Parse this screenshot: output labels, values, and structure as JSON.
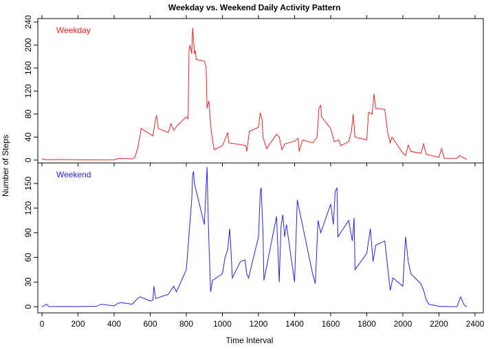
{
  "chart_data": {
    "type": "line",
    "title": "Weekday vs. Weekend Daily Activity Pattern",
    "xlabel": "Time Interval",
    "ylabel": "Number of Steps",
    "xlim": [
      -23,
      2446
    ],
    "xticks": [
      0,
      200,
      400,
      600,
      800,
      1000,
      1200,
      1400,
      1600,
      1800,
      2000,
      2200,
      2400
    ],
    "series": [
      {
        "name": "Weekday",
        "color": "#ee2222",
        "ylim": [
          -5,
          246
        ],
        "yticks": [
          0,
          40,
          80,
          120,
          160,
          200,
          240
        ],
        "x": [
          0,
          25,
          100,
          200,
          300,
          400,
          430,
          500,
          515,
          530,
          545,
          550,
          600,
          615,
          630,
          635,
          645,
          700,
          715,
          730,
          750,
          800,
          810,
          815,
          820,
          830,
          835,
          840,
          845,
          850,
          855,
          900,
          905,
          910,
          915,
          925,
          935,
          945,
          955,
          1000,
          1030,
          1035,
          1100,
          1130,
          1135,
          1150,
          1200,
          1210,
          1220,
          1225,
          1245,
          1300,
          1315,
          1330,
          1345,
          1400,
          1420,
          1425,
          1445,
          1500,
          1525,
          1535,
          1545,
          1550,
          1600,
          1620,
          1645,
          1655,
          1700,
          1715,
          1725,
          1735,
          1800,
          1810,
          1830,
          1840,
          1850,
          1900,
          1915,
          1930,
          1940,
          2000,
          2015,
          2030,
          2045,
          2100,
          2115,
          2130,
          2200,
          2215,
          2230,
          2300,
          2315,
          2330,
          2355
        ],
        "values": [
          2,
          0.5,
          1,
          0.5,
          0.4,
          0.5,
          3,
          2,
          5,
          20,
          45,
          55,
          45,
          42,
          72,
          78,
          55,
          48,
          63,
          52,
          60,
          75,
          72,
          190,
          200,
          185,
          230,
          210,
          185,
          190,
          175,
          172,
          168,
          160,
          90,
          103,
          60,
          35,
          18,
          25,
          48,
          30,
          27,
          25,
          15,
          50,
          57,
          82,
          70,
          40,
          20,
          45,
          40,
          18,
          28,
          33,
          38,
          15,
          35,
          30,
          40,
          90,
          95,
          75,
          55,
          32,
          35,
          25,
          32,
          50,
          80,
          40,
          35,
          83,
          80,
          115,
          90,
          88,
          50,
          30,
          40,
          12,
          8,
          26,
          15,
          12,
          28,
          10,
          5,
          20,
          3,
          3,
          8,
          5,
          1
        ]
      },
      {
        "name": "Weekend",
        "color": "#2222ee",
        "ylim": [
          -7.5,
          175
        ],
        "yticks": [
          0,
          30,
          60,
          90,
          120,
          150
        ],
        "x": [
          0,
          25,
          40,
          100,
          200,
          300,
          330,
          400,
          420,
          440,
          500,
          530,
          545,
          600,
          615,
          620,
          630,
          700,
          730,
          745,
          800,
          815,
          830,
          835,
          840,
          845,
          900,
          915,
          920,
          925,
          935,
          945,
          1000,
          1015,
          1030,
          1040,
          1045,
          1055,
          1100,
          1125,
          1135,
          1145,
          1200,
          1210,
          1215,
          1225,
          1230,
          1300,
          1315,
          1325,
          1335,
          1345,
          1355,
          1400,
          1415,
          1500,
          1515,
          1530,
          1545,
          1600,
          1615,
          1625,
          1635,
          1640,
          1700,
          1720,
          1730,
          1735,
          1800,
          1820,
          1835,
          1850,
          1900,
          1915,
          1930,
          1945,
          2000,
          2015,
          2030,
          2045,
          2100,
          2115,
          2130,
          2145,
          2200,
          2300,
          2320,
          2340,
          2355
        ],
        "values": [
          0,
          3,
          0,
          0.3,
          0.2,
          0.4,
          3,
          1,
          4,
          5,
          3,
          10,
          12,
          7,
          8,
          25,
          10,
          15,
          25,
          18,
          45,
          88,
          130,
          160,
          165,
          150,
          100,
          170,
          120,
          80,
          18,
          32,
          40,
          60,
          70,
          95,
          80,
          35,
          55,
          57,
          40,
          35,
          85,
          140,
          145,
          90,
          32,
          110,
          30,
          98,
          112,
          85,
          100,
          30,
          130,
          40,
          28,
          105,
          90,
          125,
          100,
          140,
          145,
          85,
          105,
          80,
          108,
          45,
          65,
          95,
          55,
          75,
          80,
          50,
          20,
          35,
          25,
          85,
          55,
          40,
          28,
          20,
          8,
          3,
          0.5,
          0,
          12,
          2,
          0
        ]
      }
    ]
  }
}
